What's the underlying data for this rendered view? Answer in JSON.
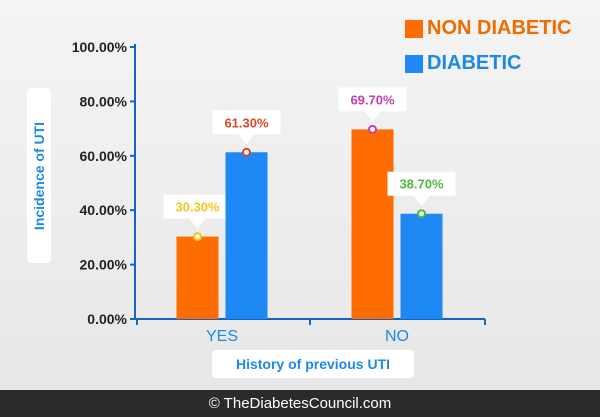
{
  "chart_data": {
    "type": "bar",
    "categories": [
      "YES",
      "NO"
    ],
    "series": [
      {
        "name": "NON DIABETIC",
        "values": [
          30.3,
          69.7
        ],
        "color": "#ff6d00",
        "labels": [
          "30.30%",
          "69.70%"
        ],
        "label_colors": [
          "#f5c518",
          "#c03fb0"
        ]
      },
      {
        "name": "DIABETIC",
        "values": [
          61.3,
          38.7
        ],
        "color": "#1e88f5",
        "labels": [
          "61.30%",
          "38.70%"
        ],
        "label_colors": [
          "#d9472b",
          "#4cba3a"
        ]
      }
    ],
    "xlabel": "History of previous UTI",
    "ylabel": "Incidence of UTI",
    "ylim": [
      0,
      100
    ],
    "yticks": [
      "0.00%",
      "20.00%",
      "40.00%",
      "60.00%",
      "80.00%",
      "100.00%"
    ],
    "legend": "top-right",
    "grid": false
  },
  "footer": "© TheDiabetesCouncil.com"
}
